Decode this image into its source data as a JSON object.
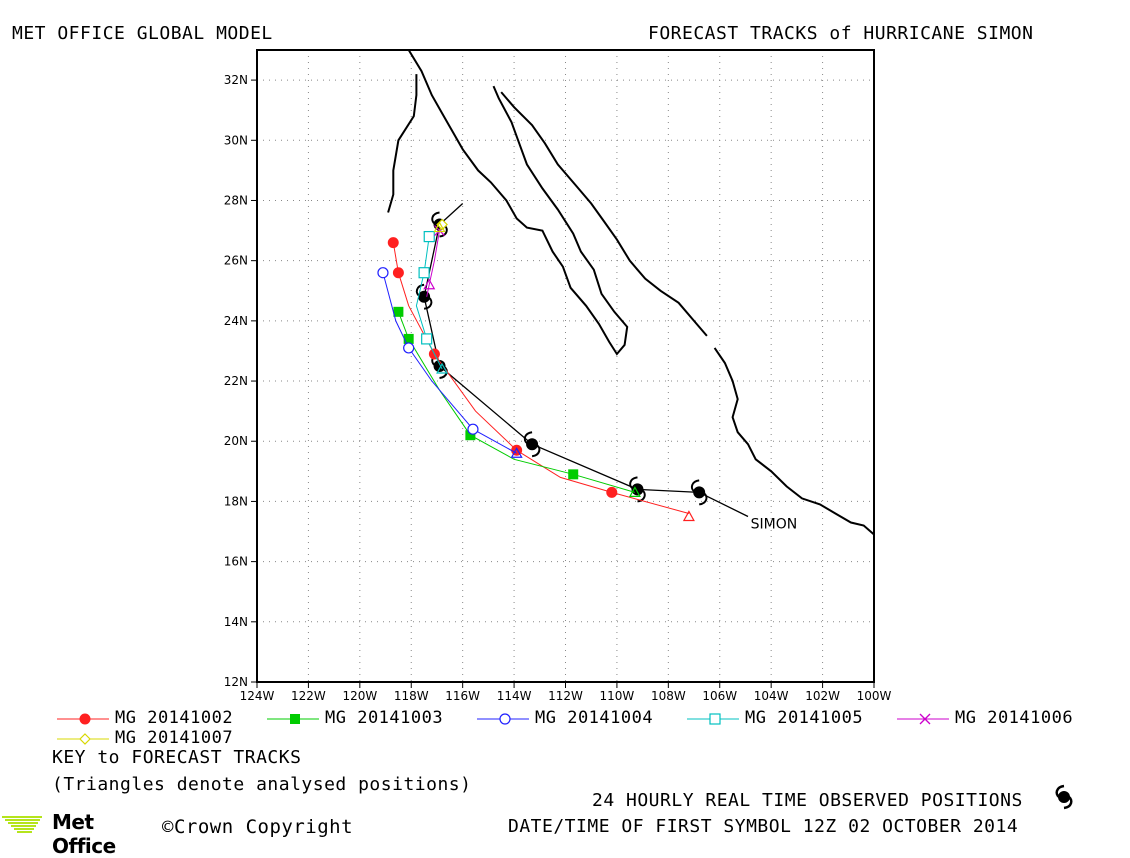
{
  "header": {
    "model": "MET OFFICE GLOBAL MODEL",
    "title": "FORECAST TRACKS of HURRICANE SIMON"
  },
  "map": {
    "lon_range": [
      -124,
      -100
    ],
    "lat_range": [
      12,
      33
    ],
    "lon_ticks": [
      {
        "v": -124,
        "label": "124W"
      },
      {
        "v": -122,
        "label": "122W"
      },
      {
        "v": -120,
        "label": "120W"
      },
      {
        "v": -118,
        "label": "118W"
      },
      {
        "v": -116,
        "label": "116W"
      },
      {
        "v": -114,
        "label": "114W"
      },
      {
        "v": -112,
        "label": "112W"
      },
      {
        "v": -110,
        "label": "110W"
      },
      {
        "v": -108,
        "label": "108W"
      },
      {
        "v": -106,
        "label": "106W"
      },
      {
        "v": -104,
        "label": "104W"
      },
      {
        "v": -102,
        "label": "102W"
      },
      {
        "v": -100,
        "label": "100W"
      }
    ],
    "lat_ticks": [
      {
        "v": 12,
        "label": "12N"
      },
      {
        "v": 14,
        "label": "14N"
      },
      {
        "v": 16,
        "label": "16N"
      },
      {
        "v": 18,
        "label": "18N"
      },
      {
        "v": 20,
        "label": "20N"
      },
      {
        "v": 22,
        "label": "22N"
      },
      {
        "v": 24,
        "label": "24N"
      },
      {
        "v": 26,
        "label": "26N"
      },
      {
        "v": 28,
        "label": "28N"
      },
      {
        "v": 30,
        "label": "30N"
      },
      {
        "v": 32,
        "label": "32N"
      }
    ],
    "grid": true,
    "storm_label": "SIMON",
    "storm_label_pos": {
      "lon": -104.8,
      "lat": 17.1
    }
  },
  "coastlines": {
    "mainland": [
      [
        [
          -118.1,
          33
        ],
        [
          -117.6,
          32.3
        ],
        [
          -117.2,
          31.5
        ],
        [
          -116.8,
          30.9
        ],
        [
          -116.4,
          30.3
        ],
        [
          -116.0,
          29.7
        ],
        [
          -115.4,
          29.0
        ],
        [
          -114.9,
          28.6
        ],
        [
          -114.3,
          28.0
        ],
        [
          -113.9,
          27.4
        ],
        [
          -113.5,
          27.1
        ],
        [
          -112.9,
          27.0
        ],
        [
          -112.5,
          26.3
        ],
        [
          -112.1,
          25.8
        ],
        [
          -111.8,
          25.1
        ],
        [
          -111.2,
          24.5
        ],
        [
          -110.7,
          23.9
        ],
        [
          -110.3,
          23.3
        ],
        [
          -110.0,
          22.9
        ],
        [
          -109.7,
          23.2
        ],
        [
          -109.6,
          23.8
        ],
        [
          -110.1,
          24.3
        ],
        [
          -110.6,
          24.9
        ],
        [
          -110.9,
          25.7
        ],
        [
          -111.4,
          26.3
        ],
        [
          -111.7,
          26.9
        ],
        [
          -112.3,
          27.7
        ],
        [
          -112.9,
          28.4
        ],
        [
          -113.5,
          29.2
        ],
        [
          -113.8,
          29.9
        ],
        [
          -114.1,
          30.6
        ],
        [
          -114.6,
          31.4
        ],
        [
          -114.8,
          31.8
        ]
      ],
      [
        [
          -114.5,
          31.6
        ],
        [
          -114.0,
          31.1
        ],
        [
          -113.3,
          30.5
        ],
        [
          -112.8,
          29.9
        ],
        [
          -112.3,
          29.2
        ],
        [
          -111.6,
          28.5
        ],
        [
          -111.0,
          27.9
        ],
        [
          -110.5,
          27.3
        ],
        [
          -110.0,
          26.7
        ],
        [
          -109.5,
          26.0
        ],
        [
          -108.9,
          25.4
        ],
        [
          -108.3,
          25.0
        ],
        [
          -107.6,
          24.6
        ],
        [
          -106.9,
          23.9
        ],
        [
          -106.5,
          23.5
        ]
      ],
      [
        [
          -106.2,
          23.1
        ],
        [
          -105.8,
          22.6
        ],
        [
          -105.5,
          22.0
        ],
        [
          -105.3,
          21.4
        ],
        [
          -105.5,
          20.8
        ],
        [
          -105.3,
          20.3
        ],
        [
          -104.9,
          19.9
        ],
        [
          -104.6,
          19.4
        ],
        [
          -104.0,
          19.0
        ],
        [
          -103.4,
          18.5
        ],
        [
          -102.8,
          18.1
        ],
        [
          -102.1,
          17.9
        ],
        [
          -101.5,
          17.6
        ],
        [
          -100.9,
          17.3
        ],
        [
          -100.4,
          17.2
        ],
        [
          -100.0,
          16.9
        ]
      ]
    ],
    "island": [
      [
        [
          -117.8,
          32.2
        ],
        [
          -117.8,
          31.5
        ],
        [
          -117.9,
          30.8
        ],
        [
          -118.5,
          30.0
        ],
        [
          -118.7,
          29.0
        ],
        [
          -118.7,
          28.2
        ],
        [
          -118.9,
          27.6
        ]
      ]
    ]
  },
  "observed_track": {
    "points": [
      {
        "lon": -106.8,
        "lat": 18.3
      },
      {
        "lon": -109.2,
        "lat": 18.4
      },
      {
        "lon": -113.3,
        "lat": 19.9
      },
      {
        "lon": -116.9,
        "lat": 22.5
      },
      {
        "lon": -117.5,
        "lat": 24.8
      },
      {
        "lon": -116.9,
        "lat": 27.2
      }
    ],
    "tail": [
      {
        "lon": -106.8,
        "lat": 18.3
      },
      {
        "lon": -104.9,
        "lat": 17.5
      }
    ],
    "head": [
      {
        "lon": -116.9,
        "lat": 27.2
      },
      {
        "lon": -116.0,
        "lat": 27.9
      }
    ]
  },
  "forecast_tracks": [
    {
      "name": "MG 20141002",
      "color": "#ff2020",
      "marker": "circle-filled",
      "points": [
        {
          "lon": -107.2,
          "lat": 17.6
        },
        {
          "lon": -110.2,
          "lat": 18.3
        },
        {
          "lon": -112.2,
          "lat": 18.8
        },
        {
          "lon": -113.9,
          "lat": 19.7
        },
        {
          "lon": -115.5,
          "lat": 21.0
        },
        {
          "lon": -117.1,
          "lat": 22.9
        },
        {
          "lon": -118.1,
          "lat": 24.5
        },
        {
          "lon": -118.5,
          "lat": 25.6
        },
        {
          "lon": -118.7,
          "lat": 26.6
        }
      ]
    },
    {
      "name": "MG 20141003",
      "color": "#00cc00",
      "marker": "square-filled",
      "points": [
        {
          "lon": -109.3,
          "lat": 18.3
        },
        {
          "lon": -111.7,
          "lat": 18.9
        },
        {
          "lon": -114.0,
          "lat": 19.4
        },
        {
          "lon": -115.7,
          "lat": 20.2
        },
        {
          "lon": -116.9,
          "lat": 21.7
        },
        {
          "lon": -118.1,
          "lat": 23.4
        },
        {
          "lon": -118.5,
          "lat": 24.3
        }
      ]
    },
    {
      "name": "MG 20141004",
      "color": "#2020ff",
      "marker": "circle-open",
      "points": [
        {
          "lon": -113.9,
          "lat": 19.6
        },
        {
          "lon": -115.6,
          "lat": 20.4
        },
        {
          "lon": -117.2,
          "lat": 22.0
        },
        {
          "lon": -118.1,
          "lat": 23.1
        },
        {
          "lon": -118.6,
          "lat": 24.0
        },
        {
          "lon": -119.1,
          "lat": 25.6
        }
      ]
    },
    {
      "name": "MG 20141005",
      "color": "#00c0c0",
      "marker": "square-open",
      "points": [
        {
          "lon": -116.8,
          "lat": 22.4
        },
        {
          "lon": -117.4,
          "lat": 23.4
        },
        {
          "lon": -117.8,
          "lat": 24.5
        },
        {
          "lon": -117.5,
          "lat": 25.6
        },
        {
          "lon": -117.3,
          "lat": 26.8
        }
      ]
    },
    {
      "name": "MG 20141006",
      "color": "#cc00cc",
      "marker": "cross",
      "points": [
        {
          "lon": -117.4,
          "lat": 24.8
        },
        {
          "lon": -117.3,
          "lat": 25.2
        },
        {
          "lon": -117.1,
          "lat": 26.0
        },
        {
          "lon": -116.9,
          "lat": 27.0
        }
      ]
    },
    {
      "name": "MG 20141007",
      "color": "#d8d800",
      "marker": "diamond-open",
      "points": [
        {
          "lon": -116.9,
          "lat": 27.0
        },
        {
          "lon": -116.8,
          "lat": 27.2
        }
      ]
    }
  ],
  "analysed_positions": [
    {
      "lon": -107.2,
      "lat": 17.5,
      "color": "#ff2020"
    },
    {
      "lon": -109.3,
      "lat": 18.3,
      "color": "#00cc00"
    },
    {
      "lon": -113.9,
      "lat": 19.6,
      "color": "#2020ff"
    },
    {
      "lon": -116.8,
      "lat": 22.4,
      "color": "#00c0c0"
    },
    {
      "lon": -117.3,
      "lat": 25.2,
      "color": "#cc00cc"
    },
    {
      "lon": -116.9,
      "lat": 27.1,
      "color": "#d8d800"
    }
  ],
  "footer": {
    "key_title": "KEY to FORECAST TRACKS",
    "key_note": "(Triangles denote analysed positions)",
    "observed_note": "24 HOURLY REAL TIME OBSERVED POSITIONS",
    "first_symbol": "DATE/TIME OF FIRST SYMBOL 12Z 02 OCTOBER 2014",
    "brand": "Met Office",
    "copyright": "©Crown Copyright",
    "brand_color": "#b5e41c"
  }
}
